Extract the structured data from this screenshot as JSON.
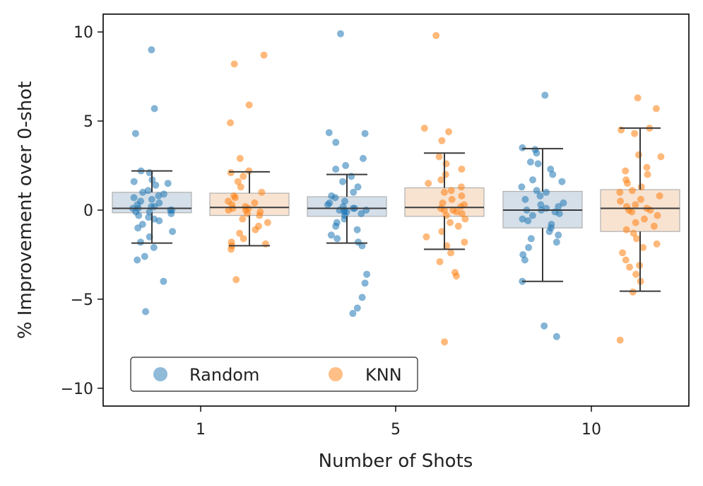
{
  "chart_data": {
    "type": "box",
    "xlabel": "Number of Shots",
    "ylabel": "% Improvement over 0-shot",
    "ylim": [
      -11,
      11
    ],
    "yticks": [
      10,
      5,
      0,
      -5,
      -10
    ],
    "ytick_labels": [
      "10",
      "5",
      "0",
      "−5",
      "−10"
    ],
    "categories": [
      "1",
      "5",
      "10"
    ],
    "grid": false,
    "legend_position": "lower-left",
    "series": [
      {
        "name": "Random",
        "color": "#1f77b4",
        "box_fill": "#d4dfe9",
        "boxes": [
          {
            "whisker_low": -1.85,
            "q1": -0.15,
            "median": 0.1,
            "q3": 1.0,
            "whisker_high": 2.2
          },
          {
            "whisker_low": -1.85,
            "q1": -0.35,
            "median": 0.1,
            "q3": 0.75,
            "whisker_high": 2.0
          },
          {
            "whisker_low": -4.0,
            "q1": -1.0,
            "median": 0.0,
            "q3": 1.05,
            "whisker_high": 3.45
          }
        ],
        "points": [
          [
            9.0,
            5.7,
            4.3,
            2.2,
            2.1,
            1.7,
            1.6,
            1.5,
            1.4,
            1.1,
            1.0,
            0.9,
            0.8,
            0.7,
            0.6,
            0.5,
            0.4,
            0.3,
            0.2,
            0.2,
            0.1,
            0.1,
            0.0,
            0.0,
            -0.1,
            -0.1,
            -0.2,
            -0.3,
            -0.4,
            -0.5,
            -0.6,
            -0.8,
            -1.0,
            -1.2,
            -1.5,
            -1.8,
            -2.1,
            -2.6,
            -2.8,
            -4.0,
            -5.7
          ],
          [
            9.9,
            4.35,
            4.3,
            3.8,
            2.9,
            2.5,
            2.3,
            1.9,
            1.6,
            1.3,
            1.0,
            0.8,
            0.7,
            0.5,
            0.4,
            0.3,
            0.2,
            0.1,
            0.1,
            0.0,
            0.0,
            0.0,
            -0.1,
            -0.1,
            -0.2,
            -0.3,
            -0.5,
            -0.7,
            -0.9,
            -1.1,
            -1.4,
            -1.6,
            -1.8,
            -2.0,
            -3.6,
            -4.1,
            -4.9,
            -5.5,
            -5.8
          ],
          [
            6.45,
            3.5,
            3.4,
            3.2,
            2.7,
            2.6,
            2.3,
            2.0,
            1.7,
            1.6,
            1.3,
            1.1,
            1.0,
            0.8,
            0.6,
            0.4,
            0.3,
            0.2,
            0.1,
            0.0,
            0.0,
            -0.1,
            -0.2,
            -0.3,
            -0.5,
            -0.6,
            -0.8,
            -1.0,
            -1.2,
            -1.4,
            -1.6,
            -1.8,
            -2.1,
            -2.5,
            -2.8,
            -4.0,
            -6.5,
            -7.1
          ]
        ]
      },
      {
        "name": "KNN",
        "color": "#ff7f0e",
        "box_fill": "#f8e3d1",
        "boxes": [
          {
            "whisker_low": -2.0,
            "q1": -0.3,
            "median": 0.15,
            "q3": 0.95,
            "whisker_high": 2.15
          },
          {
            "whisker_low": -2.2,
            "q1": -0.35,
            "median": 0.15,
            "q3": 1.25,
            "whisker_high": 3.2
          },
          {
            "whisker_low": -4.55,
            "q1": -1.2,
            "median": 0.1,
            "q3": 1.15,
            "whisker_high": 4.6
          }
        ],
        "points": [
          [
            8.7,
            8.2,
            5.9,
            4.9,
            2.9,
            2.2,
            2.1,
            1.9,
            1.6,
            1.3,
            1.0,
            0.8,
            0.7,
            0.5,
            0.4,
            0.3,
            0.2,
            0.1,
            0.1,
            0.0,
            0.0,
            -0.1,
            -0.2,
            -0.3,
            -0.5,
            -0.7,
            -0.9,
            -1.1,
            -1.3,
            -1.6,
            -1.8,
            -1.9,
            -2.0,
            -2.2,
            -3.9
          ],
          [
            9.8,
            4.6,
            4.4,
            3.9,
            3.0,
            2.6,
            2.3,
            2.0,
            1.7,
            1.5,
            1.3,
            1.1,
            1.0,
            0.8,
            0.6,
            0.4,
            0.3,
            0.2,
            0.1,
            0.0,
            0.0,
            -0.1,
            -0.2,
            -0.3,
            -0.5,
            -0.7,
            -0.9,
            -1.2,
            -1.5,
            -1.8,
            -2.0,
            -2.4,
            -2.9,
            -3.5,
            -3.7,
            -7.4
          ],
          [
            6.3,
            5.7,
            4.6,
            4.5,
            4.3,
            3.1,
            3.0,
            2.4,
            2.2,
            2.0,
            1.7,
            1.5,
            1.3,
            1.1,
            1.0,
            0.8,
            0.6,
            0.5,
            0.3,
            0.2,
            0.1,
            0.0,
            0.0,
            -0.1,
            -0.3,
            -0.5,
            -0.7,
            -0.9,
            -1.1,
            -1.3,
            -1.6,
            -1.9,
            -2.1,
            -2.4,
            -2.8,
            -3.1,
            -3.2,
            -3.6,
            -4.0,
            -4.6,
            -7.3
          ]
        ]
      }
    ]
  }
}
